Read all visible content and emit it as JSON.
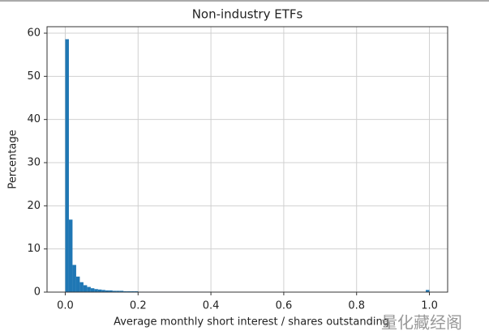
{
  "chart_data": {
    "type": "histogram",
    "title": "Non-industry ETFs",
    "x_label": "Average monthly short interest / shares outstanding",
    "y_label": "Percentage",
    "watermark": "量化藏经阁",
    "color": "#1f77b4",
    "bins": [
      0,
      0.01,
      0.02,
      0.03,
      0.04,
      0.05,
      0.06,
      0.07,
      0.08,
      0.09,
      0.1,
      0.11,
      0.12,
      0.13,
      0.14,
      0.15,
      0.16,
      0.17,
      0.18,
      0.19,
      0.2,
      0.21,
      0.22,
      0.23,
      0.24,
      0.25,
      0.26,
      0.27,
      0.28,
      0.29,
      0.3,
      0.31,
      0.32,
      0.33,
      0.34,
      0.35,
      0.36,
      0.37,
      0.38,
      0.39,
      0.4,
      0.41,
      0.42,
      0.43,
      0.44,
      0.45,
      0.46,
      0.47,
      0.48,
      0.49,
      0.5,
      0.51,
      0.52,
      0.53,
      0.54,
      0.55,
      0.56,
      0.57,
      0.58,
      0.59,
      0.6,
      0.61,
      0.62,
      0.63,
      0.64,
      0.65,
      0.66,
      0.67,
      0.68,
      0.69,
      0.7,
      0.71,
      0.72,
      0.73,
      0.74,
      0.75,
      0.76,
      0.77,
      0.78,
      0.79,
      0.8,
      0.81,
      0.82,
      0.83,
      0.84,
      0.85,
      0.86,
      0.87,
      0.88,
      0.89,
      0.9,
      0.91,
      0.92,
      0.93,
      0.94,
      0.95,
      0.96,
      0.97,
      0.98,
      0.99,
      1
    ],
    "values": [
      58.6,
      16.8,
      6.3,
      3.6,
      2.3,
      1.6,
      1.2,
      0.9,
      0.7,
      0.6,
      0.5,
      0.4,
      0.4,
      0.3,
      0.3,
      0.3,
      0.2,
      0.2,
      0.2,
      0.2,
      0.1,
      0.1,
      0.1,
      0.1,
      0.1,
      0.1,
      0.1,
      0.1,
      0.1,
      0.1,
      0.1,
      0.1,
      0.1,
      0.1,
      0.1,
      0.1,
      0.1,
      0.1,
      0.1,
      0.1,
      0.05,
      0.05,
      0.05,
      0.05,
      0.05,
      0,
      0,
      0,
      0,
      0,
      0,
      0,
      0,
      0,
      0,
      0,
      0,
      0,
      0,
      0,
      0.05,
      0,
      0,
      0,
      0,
      0,
      0,
      0,
      0,
      0,
      0,
      0,
      0,
      0,
      0,
      0,
      0,
      0,
      0,
      0,
      0.05,
      0,
      0,
      0,
      0,
      0,
      0,
      0,
      0,
      0,
      0,
      0,
      0,
      0,
      0,
      0,
      0,
      0,
      0,
      0.5
    ],
    "xlim": [
      -0.05,
      1.05
    ],
    "ylim": [
      0,
      61.5
    ],
    "xticks": [
      {
        "value": 0,
        "label": "0.0"
      },
      0.2,
      0.4,
      0.6,
      0.8,
      {
        "value": 1,
        "label": "1.0"
      }
    ],
    "yticks": [
      0,
      10,
      20,
      30,
      40,
      50,
      60
    ],
    "grid": true
  }
}
